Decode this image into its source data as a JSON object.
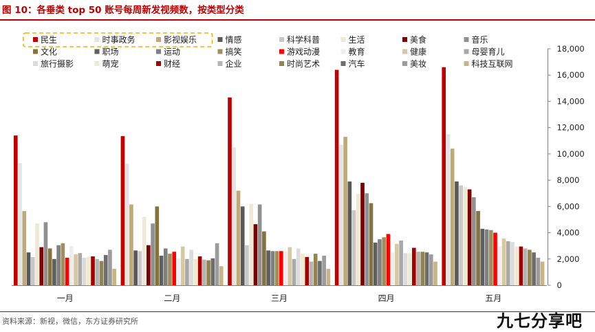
{
  "title": "图 10：各垂类 top 50 账号每周新发视频数，按类型分类",
  "source": "资料来源：新视，微信，东方证券研究所",
  "watermark": "九七分享吧",
  "chart_data": {
    "type": "bar",
    "categories": [
      "一月",
      "二月",
      "三月",
      "四月",
      "五月"
    ],
    "ylim": [
      0,
      18000
    ],
    "yticks": [
      "0",
      "2,000",
      "4,000",
      "6,000",
      "8,000",
      "10,000",
      "12,000",
      "14,000",
      "16,000",
      "18,000"
    ],
    "y_axis_position": "right",
    "grid": false,
    "legend_position": "top",
    "highlighted_legend_items": [
      "民生",
      "时事政务"
    ],
    "series": [
      {
        "name": "民生",
        "color": "#c00000",
        "values": [
          11400,
          11350,
          14300,
          16400,
          16600
        ]
      },
      {
        "name": "时事政务",
        "color": "#e4e4e4",
        "values": [
          9300,
          9250,
          10500,
          10700,
          11500
        ]
      },
      {
        "name": "影视娱乐",
        "color": "#bfa978",
        "values": [
          5650,
          6150,
          7200,
          11300,
          10400
        ]
      },
      {
        "name": "情感",
        "color": "#595959",
        "values": [
          2500,
          2650,
          6000,
          7900,
          7900
        ]
      },
      {
        "name": "科学科普",
        "color": "#c8c8c8",
        "values": [
          2150,
          2600,
          3050,
          5700,
          7600
        ]
      },
      {
        "name": "生活",
        "color": "#eee8d5",
        "values": [
          4700,
          5200,
          6200,
          6950,
          7500
        ]
      },
      {
        "name": "美食",
        "color": "#7b0000",
        "values": [
          2900,
          3050,
          4650,
          7800,
          7300
        ]
      },
      {
        "name": "音乐",
        "color": "#909090",
        "values": [
          4800,
          4700,
          6150,
          7000,
          6700
        ]
      },
      {
        "name": "文化",
        "color": "#84733f",
        "values": [
          2800,
          6000,
          4100,
          6250,
          5650
        ]
      },
      {
        "name": "职场",
        "color": "#5f5f5f",
        "values": [
          2000,
          2250,
          2650,
          3250,
          4300
        ]
      },
      {
        "name": "运动",
        "color": "#808080",
        "values": [
          3050,
          2800,
          2600,
          3500,
          4250
        ]
      },
      {
        "name": "搞笑",
        "color": "#a08f5c",
        "values": [
          3200,
          2400,
          2600,
          3650,
          4200
        ]
      },
      {
        "name": "游戏动漫",
        "color": "#ff0000",
        "values": [
          2100,
          2550,
          2600,
          3900,
          4000
        ]
      },
      {
        "name": "教育",
        "color": "#eeeeee",
        "values": [
          3000,
          2050,
          2600,
          2500,
          2950
        ]
      },
      {
        "name": "健康",
        "color": "#d6c8a0",
        "values": [
          2350,
          2950,
          2900,
          3150,
          3550
        ]
      },
      {
        "name": "母婴育儿",
        "color": "#a9a9a9",
        "values": [
          2450,
          2000,
          2000,
          3400,
          3350
        ]
      },
      {
        "name": "旅行摄影",
        "color": "#dcdcdc",
        "values": [
          2100,
          2700,
          2800,
          2450,
          3300
        ]
      },
      {
        "name": "萌宠",
        "color": "#f2ead0",
        "values": [
          2150,
          2000,
          2400,
          2450,
          2950
        ]
      },
      {
        "name": "财经",
        "color": "#a50000",
        "values": [
          2200,
          2200,
          2150,
          2850,
          2950
        ]
      },
      {
        "name": "企业",
        "color": "#b4b4b4",
        "values": [
          2000,
          1950,
          1800,
          2550,
          2800
        ]
      },
      {
        "name": "时尚艺术",
        "color": "#93834e",
        "values": [
          1850,
          1900,
          2400,
          2550,
          2700
        ]
      },
      {
        "name": "汽车",
        "color": "#6d6d6d",
        "values": [
          2300,
          2050,
          1850,
          2500,
          2500
        ]
      },
      {
        "name": "美妆",
        "color": "#9c9c9c",
        "values": [
          2700,
          3200,
          2250,
          2350,
          2100
        ]
      },
      {
        "name": "科技互联网",
        "color": "#c9b487",
        "values": [
          1250,
          1450,
          1250,
          1800,
          1800
        ]
      }
    ]
  }
}
